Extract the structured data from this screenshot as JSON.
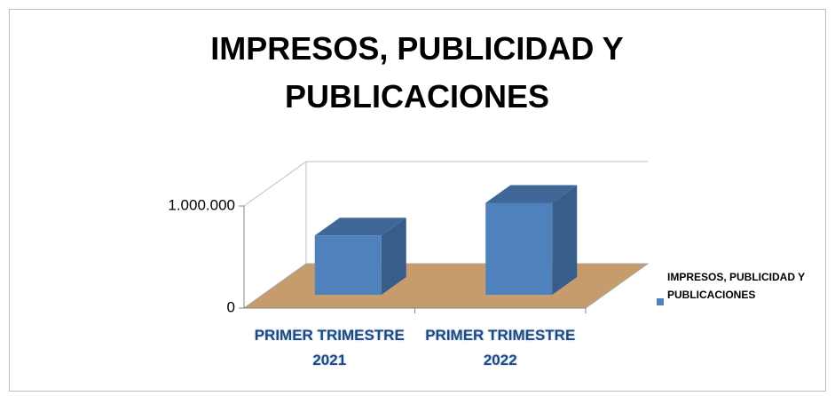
{
  "chart_data": {
    "type": "bar3d",
    "title": "IMPRESOS, PUBLICIDAD Y PUBLICACIONES",
    "categories": [
      "PRIMER TRIMESTRE 2021",
      "PRIMER TRIMESTRE 2022"
    ],
    "series": [
      {
        "name": "IMPRESOS, PUBLICIDAD Y PUBLICACIONES",
        "color": "#4f81bd",
        "values": [
          580000,
          900000
        ]
      }
    ],
    "ylim": [
      0,
      1000000
    ],
    "yticks": [
      0,
      {
        "value": 1000000,
        "label": "1.000.000"
      }
    ],
    "grid": true,
    "legend": "right"
  }
}
